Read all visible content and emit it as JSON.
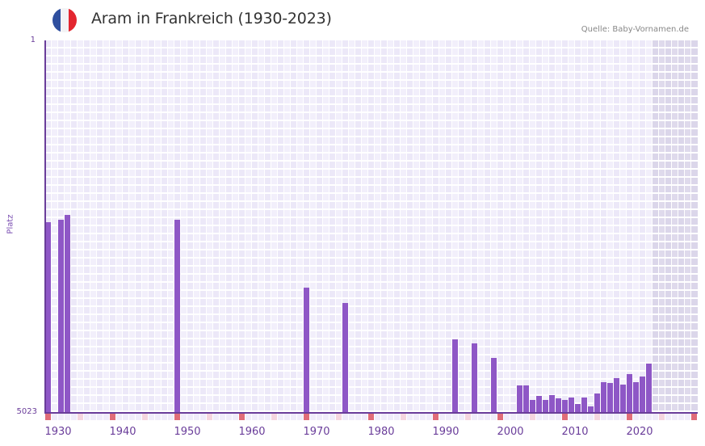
{
  "header": {
    "title": "Aram in Frankreich (1930-2023)",
    "source": "Quelle: Baby-Vornamen.de",
    "flag": {
      "name": "france-flag-icon",
      "colors": [
        "#2f4f9f",
        "#f3f3f5",
        "#e3262f"
      ]
    }
  },
  "colors": {
    "bar": "#8e57c6",
    "axis": "#6a3d9a",
    "grid_col_a": "#ece8f8",
    "grid_col_b": "#f2effb",
    "future_shade": "#e2dded",
    "tick_decade": "#e06c78",
    "tick_half": "#f5d5df",
    "tick_other": "#f0ecfa"
  },
  "chart_data": {
    "type": "bar",
    "title": "Aram in Frankreich (1930-2023)",
    "xlabel": "",
    "ylabel": "Platz",
    "y_inverted": true,
    "ylim": [
      1,
      5023
    ],
    "y_tick_labels": [
      "1",
      "5023"
    ],
    "x_range": [
      1930,
      2030
    ],
    "x_tick_labels": [
      "1930",
      "1940",
      "1950",
      "1960",
      "1970",
      "1980",
      "1990",
      "2000",
      "2010",
      "2020"
    ],
    "grid": true,
    "future_shaded_from": 2024,
    "categories": [
      1930,
      1932,
      1933,
      1950,
      1970,
      1976,
      1993,
      1996,
      1999,
      2003,
      2004,
      2005,
      2006,
      2007,
      2008,
      2009,
      2010,
      2011,
      2012,
      2013,
      2014,
      2015,
      2016,
      2017,
      2018,
      2019,
      2020,
      2021,
      2022,
      2023
    ],
    "values": [
      2457,
      2424,
      2359,
      2424,
      3342,
      3549,
      4040,
      4095,
      4291,
      4662,
      4662,
      4859,
      4804,
      4859,
      4793,
      4837,
      4859,
      4826,
      4914,
      4826,
      4946,
      4772,
      4619,
      4630,
      4564,
      4652,
      4510,
      4619,
      4543,
      4368
    ],
    "series": [
      {
        "name": "Platz (Rang)",
        "values": [
          2457,
          2424,
          2359,
          2424,
          3342,
          3549,
          4040,
          4095,
          4291,
          4662,
          4662,
          4859,
          4804,
          4859,
          4793,
          4837,
          4859,
          4826,
          4914,
          4826,
          4946,
          4772,
          4619,
          4630,
          4564,
          4652,
          4510,
          4619,
          4543,
          4368
        ]
      }
    ]
  }
}
